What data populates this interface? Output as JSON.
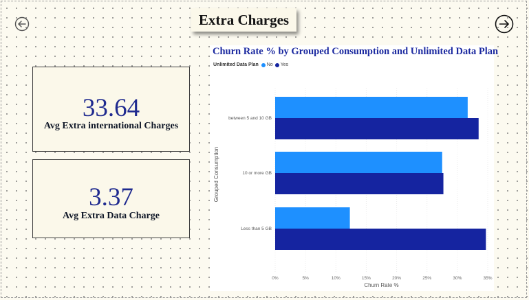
{
  "page": {
    "title": "Extra Charges"
  },
  "nav": {
    "back_icon": "arrow-left-circle-icon",
    "next_icon": "arrow-right-circle-icon"
  },
  "kpis": [
    {
      "value": "33.64",
      "label": "Avg Extra international Charges"
    },
    {
      "value": "3.37",
      "label": "Avg Extra Data Charge"
    }
  ],
  "colors": {
    "no": "#1e90ff",
    "yes": "#1524a0",
    "kpi_value": "#1f2a8f",
    "title": "#1c2aa0"
  },
  "chart_data": {
    "type": "bar",
    "orientation": "horizontal",
    "title": "Churn Rate % by Grouped Consumption and Unlimited Data Plan",
    "xlabel": "Churn Rate %",
    "ylabel": "Grouped Consumption",
    "legend_title": "Unlimited Data Plan",
    "legend_position": "top-left",
    "categories": [
      "between 5 and 10 GB",
      "10 or more GB",
      "Less than 5 GB"
    ],
    "series": [
      {
        "name": "No",
        "values": [
          31.7,
          27.5,
          12.3
        ]
      },
      {
        "name": "Yes",
        "values": [
          33.5,
          27.7,
          34.7
        ]
      }
    ],
    "xlim": [
      0,
      35
    ],
    "xticks": [
      "0%",
      "5%",
      "10%",
      "15%",
      "20%",
      "25%",
      "30%",
      "35%"
    ],
    "grid": true
  }
}
